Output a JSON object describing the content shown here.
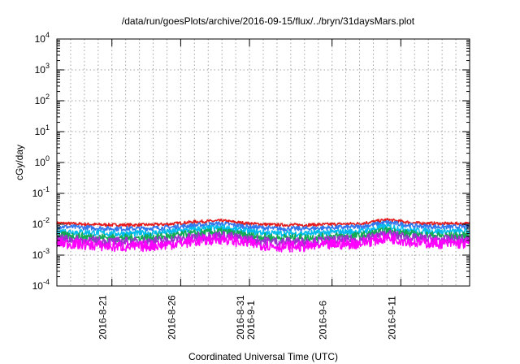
{
  "chart_data": {
    "type": "line",
    "title": "/data/run/goesPlots/archive/2016-09-15/flux/../bryn/31daysMars.plot",
    "xlabel": "Coordinated Universal Time (UTC)",
    "ylabel": "cGy/day",
    "y_scale": "log",
    "ylim": [
      0.0001,
      10000
    ],
    "xlim": [
      "2016-08-17",
      "2016-09-16"
    ],
    "grid": true,
    "legend": "none",
    "y_ticks": [
      {
        "base": "10",
        "exp": "-4"
      },
      {
        "base": "10",
        "exp": "-3"
      },
      {
        "base": "10",
        "exp": "-2"
      },
      {
        "base": "10",
        "exp": "-1"
      },
      {
        "base": "10",
        "exp": "0"
      },
      {
        "base": "10",
        "exp": "1"
      },
      {
        "base": "10",
        "exp": "2"
      },
      {
        "base": "10",
        "exp": "3"
      },
      {
        "base": "10",
        "exp": "4"
      }
    ],
    "x_ticks": [
      {
        "date": "2016-08-21",
        "lines": [
          "2016-8-21"
        ]
      },
      {
        "date": "2016-08-26",
        "lines": [
          "2016-8-26"
        ]
      },
      {
        "date": "2016-08-31",
        "lines": [
          "2016-8-31",
          "2016-9-1"
        ]
      },
      {
        "date": "2016-09-06",
        "lines": [
          "2016-9-6"
        ]
      },
      {
        "date": "2016-09-11",
        "lines": [
          "2016-9-11"
        ]
      }
    ],
    "x_dates": [
      "2016-08-17",
      "2016-08-19",
      "2016-08-21",
      "2016-08-23",
      "2016-08-25",
      "2016-08-27",
      "2016-08-29",
      "2016-08-31",
      "2016-09-02",
      "2016-09-04",
      "2016-09-06",
      "2016-09-08",
      "2016-09-10",
      "2016-09-12",
      "2016-09-14",
      "2016-09-16"
    ],
    "series": [
      {
        "color": "#e41a1c",
        "values": [
          0.011,
          0.01,
          0.0095,
          0.0095,
          0.01,
          0.012,
          0.013,
          0.0105,
          0.0095,
          0.0095,
          0.01,
          0.0105,
          0.014,
          0.011,
          0.0105,
          0.0105
        ]
      },
      {
        "color": "#3377ee",
        "values": [
          0.0085,
          0.0078,
          0.0072,
          0.0072,
          0.0078,
          0.0092,
          0.0105,
          0.0082,
          0.0072,
          0.0072,
          0.0078,
          0.0082,
          0.0115,
          0.0088,
          0.0082,
          0.0082
        ]
      },
      {
        "color": "#00bbee",
        "values": [
          0.006,
          0.0055,
          0.005,
          0.005,
          0.0055,
          0.0068,
          0.0078,
          0.0058,
          0.005,
          0.005,
          0.0055,
          0.0058,
          0.0085,
          0.0062,
          0.0058,
          0.0058
        ]
      },
      {
        "color": "#11aa55",
        "values": [
          0.0045,
          0.004,
          0.0036,
          0.0036,
          0.004,
          0.005,
          0.0058,
          0.0042,
          0.0036,
          0.0036,
          0.004,
          0.0042,
          0.0062,
          0.0046,
          0.0042,
          0.0042
        ]
      },
      {
        "color": "#9933cc",
        "values": [
          0.0034,
          0.003,
          0.0027,
          0.0027,
          0.003,
          0.0038,
          0.0044,
          0.0032,
          0.0027,
          0.0027,
          0.003,
          0.0032,
          0.0048,
          0.0035,
          0.0032,
          0.0032
        ]
      },
      {
        "color": "#ff00ff",
        "values": [
          0.0025,
          0.0022,
          0.0019,
          0.0019,
          0.0022,
          0.0028,
          0.0034,
          0.0024,
          0.0019,
          0.0019,
          0.0022,
          0.0024,
          0.0037,
          0.0026,
          0.0024,
          0.0024
        ]
      }
    ]
  }
}
